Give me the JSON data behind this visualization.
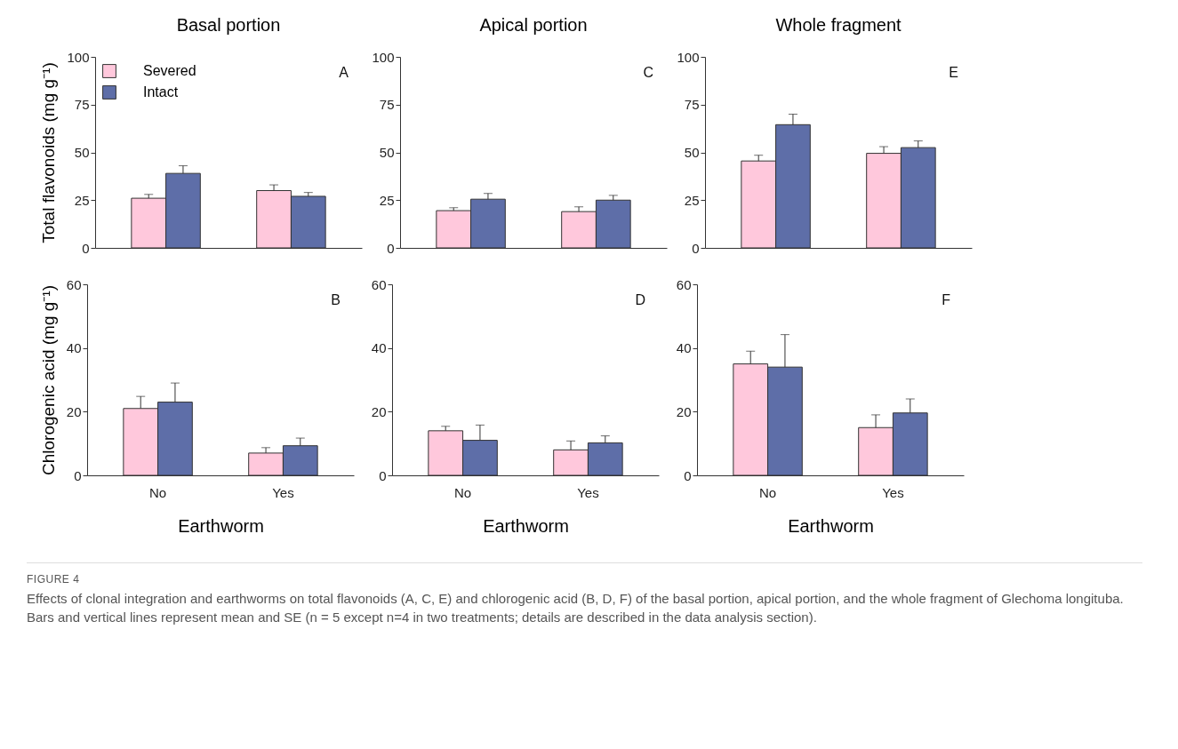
{
  "chart_data": [
    {
      "type": "bar",
      "title": "Basal portion",
      "ylabel": "Total flavonoids (mg g⁻¹)",
      "categories": [
        null,
        null
      ],
      "ylim": [
        0,
        100
      ],
      "yticks": [
        0,
        25,
        50,
        75,
        100
      ],
      "tick_labels": "y",
      "legend": "top left",
      "annotations": [
        "A"
      ],
      "series": [
        {
          "name": "Severed",
          "color": "#ffc8dc",
          "values": [
            26,
            30
          ],
          "errors": [
            [
              26,
              28
            ],
            [
              30,
              33
            ]
          ]
        },
        {
          "name": "Intact",
          "color": "#5e6ea8",
          "values": [
            39,
            27
          ],
          "errors": [
            [
              39,
              43
            ],
            [
              27,
              29
            ]
          ]
        }
      ]
    },
    {
      "type": "bar",
      "title": "Apical portion",
      "categories": [
        null,
        null
      ],
      "ylim": [
        0,
        100
      ],
      "yticks": [
        0,
        25,
        50,
        75,
        100
      ],
      "tick_labels": "y",
      "annotations": [
        "C"
      ],
      "series": [
        {
          "color": "#ffc8dc",
          "values": [
            19.5,
            19
          ],
          "errors": [
            [
              19.5,
              21
            ],
            [
              19,
              21.5
            ]
          ]
        },
        {
          "color": "#5e6ea8",
          "values": [
            25.5,
            25
          ],
          "errors": [
            [
              25.5,
              28.5
            ],
            [
              25,
              27.5
            ]
          ]
        }
      ]
    },
    {
      "type": "bar",
      "title": "Whole fragment",
      "categories": [
        null,
        null
      ],
      "ylim": [
        0,
        100
      ],
      "yticks": [
        0,
        25,
        50,
        75,
        100
      ],
      "tick_labels": "y",
      "annotations": [
        "E"
      ],
      "series": [
        {
          "color": "#ffc8dc",
          "values": [
            45.5,
            49.5
          ],
          "errors": [
            [
              45.5,
              48.5
            ],
            [
              49.5,
              53
            ]
          ]
        },
        {
          "color": "#5e6ea8",
          "values": [
            64.5,
            52.5
          ],
          "errors": [
            [
              64.5,
              70
            ],
            [
              52.5,
              56
            ]
          ]
        }
      ]
    },
    {
      "type": "bar",
      "xlabel": "Earthworm",
      "ylabel": "Chlorogenic acid (mg g⁻¹)",
      "categories": [
        "No",
        "Yes"
      ],
      "ylim": [
        0,
        60
      ],
      "yticks": [
        0,
        20,
        40,
        60
      ],
      "annotations": [
        "B"
      ],
      "series": [
        {
          "color": "#ffc8dc",
          "values": [
            21,
            7
          ],
          "errors": [
            [
              21,
              24.8
            ],
            [
              7,
              8.7
            ]
          ]
        },
        {
          "color": "#5e6ea8",
          "values": [
            23,
            9.3
          ],
          "errors": [
            [
              23,
              29
            ],
            [
              9.3,
              11.7
            ]
          ]
        }
      ]
    },
    {
      "type": "bar",
      "xlabel": "Earthworm",
      "categories": [
        "No",
        "Yes"
      ],
      "ylim": [
        0,
        60
      ],
      "yticks": [
        0,
        20,
        40,
        60
      ],
      "annotations": [
        "D"
      ],
      "series": [
        {
          "color": "#ffc8dc",
          "values": [
            14,
            8
          ],
          "errors": [
            [
              14,
              15.4
            ],
            [
              8,
              10.8
            ]
          ]
        },
        {
          "color": "#5e6ea8",
          "values": [
            11,
            10.2
          ],
          "errors": [
            [
              11,
              15.8
            ],
            [
              10.2,
              12.4
            ]
          ]
        }
      ]
    },
    {
      "type": "bar",
      "xlabel": "Earthworm",
      "categories": [
        "No",
        "Yes"
      ],
      "ylim": [
        0,
        60
      ],
      "yticks": [
        0,
        20,
        40,
        60
      ],
      "annotations": [
        "F"
      ],
      "series": [
        {
          "color": "#ffc8dc",
          "values": [
            35,
            15
          ],
          "errors": [
            [
              35,
              39
            ],
            [
              15,
              19
            ]
          ]
        },
        {
          "color": "#5e6ea8",
          "values": [
            34,
            19.6
          ],
          "errors": [
            [
              34,
              44.2
            ],
            [
              19.6,
              24
            ]
          ]
        }
      ]
    },
    {
      "type": "other",
      "annotations": [
        "FIGURE 4",
        "Effects of clonal integration and earthworms on total flavonoids (A, C, E) and chlorogenic acid (B, D, F) of the basal portion, apical portion, and the whole fragment of Glechoma longituba. Bars and vertical lines represent mean and SE (n = 5 except n=4 in two treatments; details are described in the data analysis section)."
      ]
    }
  ]
}
